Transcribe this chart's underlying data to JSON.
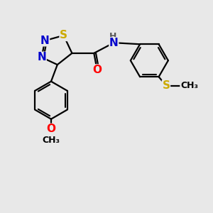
{
  "background_color": "#e8e8e8",
  "atom_colors": {
    "N": "#0000cc",
    "S": "#ccaa00",
    "O": "#ff0000",
    "C": "#000000",
    "H": "#555555"
  },
  "bond_color": "#000000",
  "bond_width": 1.6,
  "font_size": 10,
  "figsize": [
    3.0,
    3.0
  ],
  "dpi": 100
}
